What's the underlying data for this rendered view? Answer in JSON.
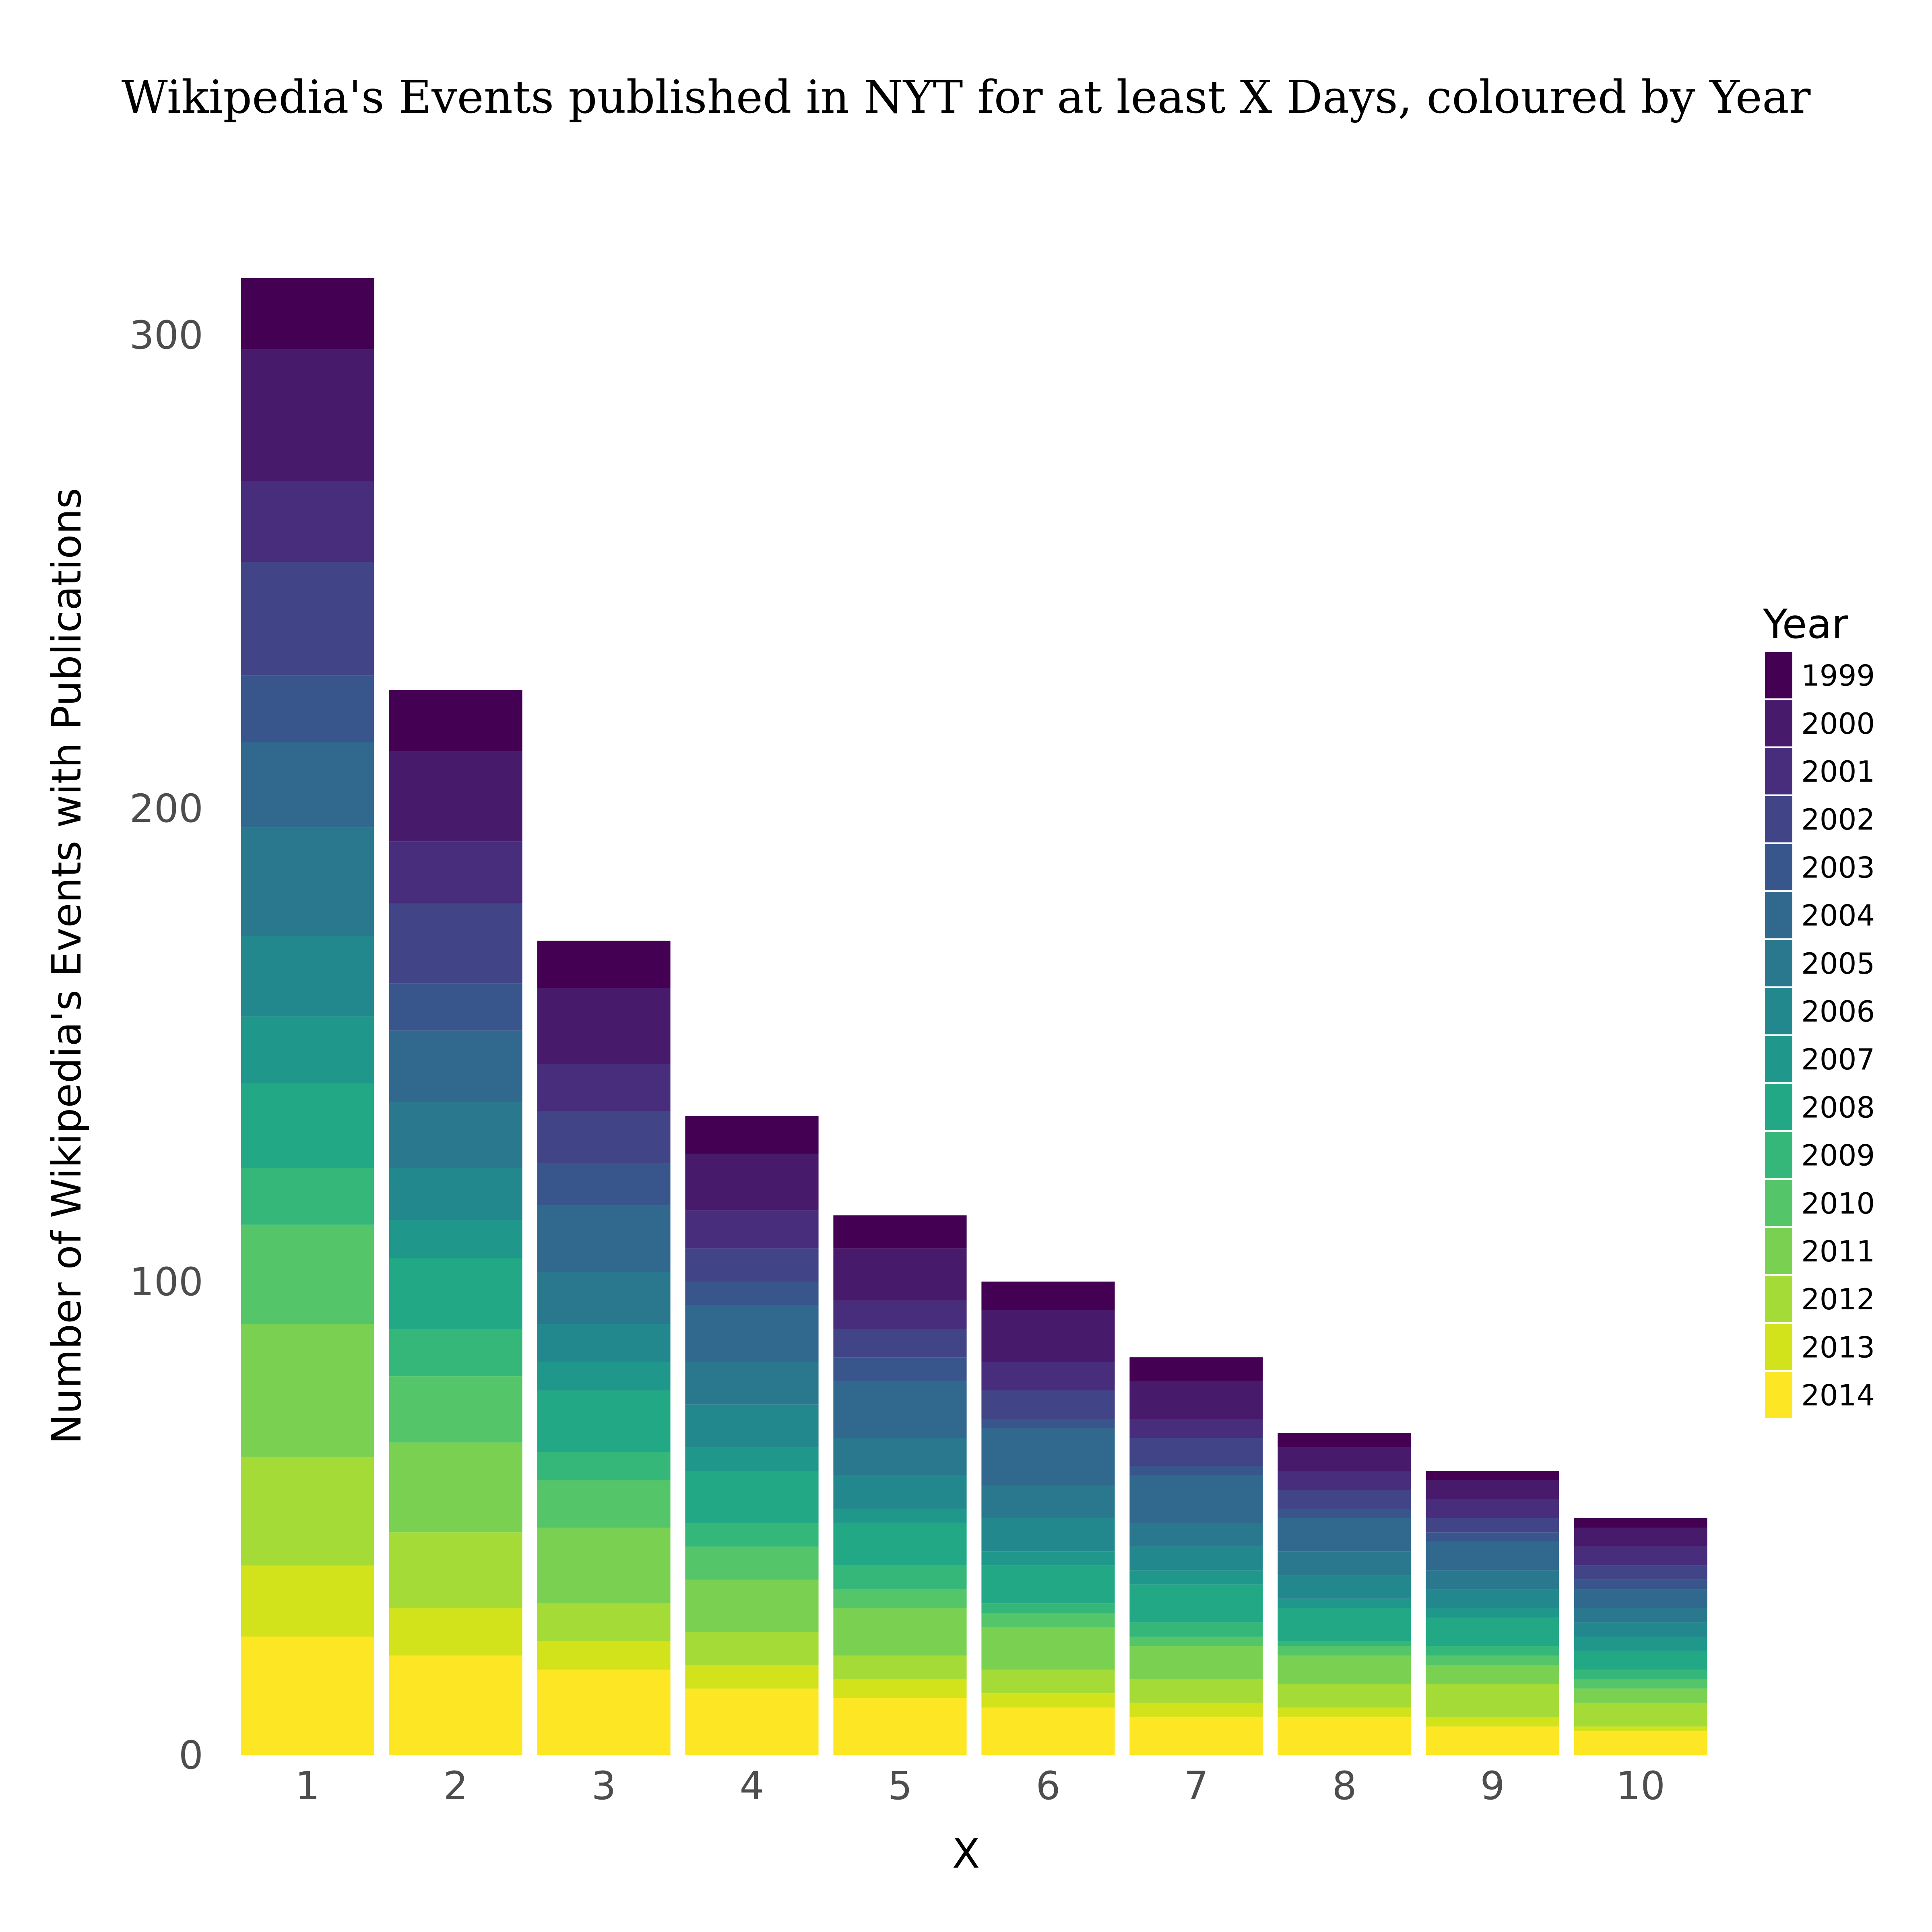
{
  "chart_data": {
    "type": "bar",
    "stacked": true,
    "title": "Wikipedia's Events published in NYT for at least X Days, coloured by Year",
    "xlabel": "X",
    "ylabel": "Number of Wikipedia's Events with Publications",
    "categories": [
      "1",
      "2",
      "3",
      "4",
      "5",
      "6",
      "7",
      "8",
      "9",
      "10"
    ],
    "yticks": [
      "0",
      "100",
      "200",
      "300"
    ],
    "ylim": [
      0,
      320
    ],
    "grid": false,
    "legend": {
      "title": "Year",
      "placement": "right"
    },
    "series": [
      {
        "name": "2014",
        "color": "#fde725",
        "values": [
          25,
          21,
          18,
          14,
          12,
          10,
          8,
          8,
          6,
          5
        ]
      },
      {
        "name": "2013",
        "color": "#d2e21b",
        "values": [
          15,
          10,
          6,
          5,
          4,
          3,
          3,
          2,
          2,
          1
        ]
      },
      {
        "name": "2012",
        "color": "#a5db36",
        "values": [
          23,
          16,
          8,
          7,
          5,
          5,
          5,
          5,
          7,
          5
        ]
      },
      {
        "name": "2011",
        "color": "#7ad151",
        "values": [
          28,
          19,
          16,
          11,
          10,
          9,
          7,
          6,
          4,
          3
        ]
      },
      {
        "name": "2010",
        "color": "#54c568",
        "values": [
          21,
          14,
          10,
          7,
          4,
          3,
          2,
          2,
          2,
          2
        ]
      },
      {
        "name": "2009",
        "color": "#35b779",
        "values": [
          12,
          10,
          6,
          5,
          5,
          2,
          3,
          1,
          2,
          2
        ]
      },
      {
        "name": "2008",
        "color": "#22a884",
        "values": [
          18,
          15,
          13,
          11,
          9,
          8,
          8,
          7,
          6,
          4
        ]
      },
      {
        "name": "2007",
        "color": "#1f988b",
        "values": [
          14,
          8,
          6,
          5,
          3,
          3,
          3,
          2,
          2,
          3
        ]
      },
      {
        "name": "2006",
        "color": "#23888e",
        "values": [
          17,
          11,
          8,
          9,
          7,
          7,
          5,
          5,
          4,
          3
        ]
      },
      {
        "name": "2005",
        "color": "#2a788e",
        "values": [
          23,
          14,
          11,
          9,
          8,
          7,
          5,
          5,
          4,
          3
        ]
      },
      {
        "name": "2004",
        "color": "#31688e",
        "values": [
          18,
          15,
          14,
          12,
          12,
          12,
          10,
          7,
          6,
          4
        ]
      },
      {
        "name": "2003",
        "color": "#39568c",
        "values": [
          14,
          10,
          9,
          5,
          5,
          2,
          2,
          2,
          2,
          2
        ]
      },
      {
        "name": "2002",
        "color": "#414487",
        "values": [
          24,
          17,
          11,
          7,
          6,
          6,
          6,
          4,
          3,
          3
        ]
      },
      {
        "name": "2001",
        "color": "#472d7b",
        "values": [
          17,
          13,
          10,
          8,
          6,
          6,
          4,
          4,
          4,
          4
        ]
      },
      {
        "name": "2000",
        "color": "#481a6c",
        "values": [
          28,
          19,
          16,
          12,
          11,
          11,
          8,
          5,
          4,
          4
        ]
      },
      {
        "name": "1999",
        "color": "#440154",
        "values": [
          15,
          13,
          10,
          8,
          7,
          6,
          5,
          3,
          2,
          2
        ]
      }
    ]
  }
}
